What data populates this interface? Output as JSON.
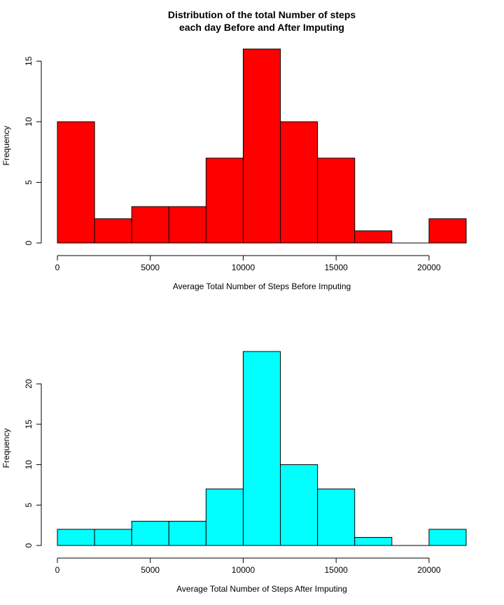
{
  "chart_data": [
    {
      "type": "bar",
      "title_lines": [
        "Distribution of the total Number of steps",
        "each day Before and After Imputing"
      ],
      "xlabel": "Average Total Number of Steps Before Imputing",
      "ylabel": "Frequency",
      "bar_color": "#ff0000",
      "bin_edges": [
        0,
        2000,
        4000,
        6000,
        8000,
        10000,
        12000,
        14000,
        16000,
        18000,
        20000,
        22000
      ],
      "values": [
        10,
        2,
        3,
        3,
        7,
        16,
        10,
        7,
        1,
        0,
        2
      ],
      "xlim": [
        0,
        22000
      ],
      "ylim": [
        0,
        16
      ],
      "x_ticks": [
        0,
        5000,
        10000,
        15000,
        20000
      ],
      "y_ticks": [
        0,
        5,
        10,
        15
      ]
    },
    {
      "type": "bar",
      "xlabel": "Average Total Number of Steps After Imputing",
      "ylabel": "Frequency",
      "bar_color": "#00ffff",
      "bin_edges": [
        0,
        2000,
        4000,
        6000,
        8000,
        10000,
        12000,
        14000,
        16000,
        18000,
        20000,
        22000
      ],
      "values": [
        2,
        2,
        3,
        3,
        7,
        24,
        10,
        7,
        1,
        0,
        2
      ],
      "xlim": [
        0,
        22000
      ],
      "ylim": [
        0,
        24
      ],
      "x_ticks": [
        0,
        5000,
        10000,
        15000,
        20000
      ],
      "y_ticks": [
        0,
        5,
        10,
        15,
        20
      ]
    }
  ]
}
